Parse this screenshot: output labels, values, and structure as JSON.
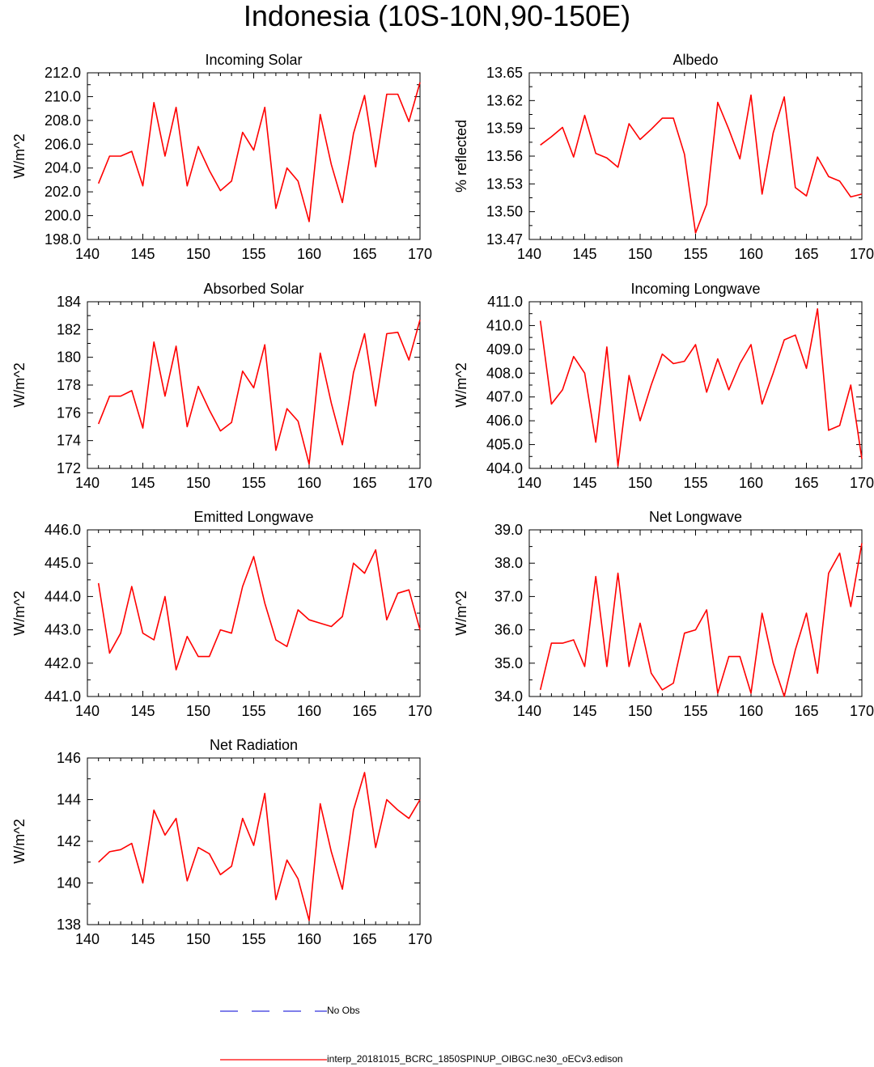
{
  "title": "Indonesia (10S-10N,90-150E)",
  "colors": {
    "model_line": "#ff0000",
    "obs_line": "#3333dd",
    "axis": "#000000"
  },
  "legend": [
    {
      "label": "No Obs",
      "style": "dashed",
      "color": "#3333dd"
    },
    {
      "label": "interp_20181015_BCRC_1850SPINUP_OIBGC.ne30_oECv3.edison",
      "style": "solid",
      "color": "#ff0000"
    }
  ],
  "chart_data": [
    {
      "type": "line",
      "title": "Incoming Solar",
      "ylabel": "W/m^2",
      "xlim": [
        140,
        170
      ],
      "xticks": [
        "140",
        "145",
        "150",
        "155",
        "160",
        "165",
        "170"
      ],
      "ylim": [
        198,
        212
      ],
      "yticks": [
        "198.0",
        "200.0",
        "202.0",
        "204.0",
        "206.0",
        "208.0",
        "210.0",
        "212.0"
      ],
      "x": [
        141,
        142,
        143,
        144,
        145,
        146,
        147,
        148,
        149,
        150,
        151,
        152,
        153,
        154,
        155,
        156,
        157,
        158,
        159,
        160,
        161,
        162,
        163,
        164,
        165,
        166,
        167,
        168,
        169,
        170
      ],
      "series": [
        {
          "name": "interp_20181015_BCRC_1850SPINUP_OIBGC.ne30_oECv3.edison",
          "values": [
            202.7,
            205.0,
            205.0,
            205.4,
            202.5,
            209.5,
            205.0,
            209.1,
            202.5,
            205.8,
            203.8,
            202.1,
            202.9,
            207.0,
            205.5,
            209.1,
            200.6,
            204.0,
            202.9,
            199.5,
            208.5,
            204.3,
            201.1,
            206.9,
            210.1,
            204.1,
            210.2,
            210.2,
            207.9,
            211.2
          ]
        }
      ]
    },
    {
      "type": "line",
      "title": "Albedo",
      "ylabel": "% reflected",
      "xlim": [
        140,
        170
      ],
      "xticks": [
        "140",
        "145",
        "150",
        "155",
        "160",
        "165",
        "170"
      ],
      "ylim": [
        13.47,
        13.65
      ],
      "yticks": [
        "13.47",
        "13.50",
        "13.53",
        "13.56",
        "13.59",
        "13.62",
        "13.65"
      ],
      "x": [
        141,
        142,
        143,
        144,
        145,
        146,
        147,
        148,
        149,
        150,
        151,
        152,
        153,
        154,
        155,
        156,
        157,
        158,
        159,
        160,
        161,
        162,
        163,
        164,
        165,
        166,
        167,
        168,
        169,
        170
      ],
      "series": [
        {
          "name": "interp_20181015_BCRC_1850SPINUP_OIBGC.ne30_oECv3.edison",
          "values": [
            13.572,
            13.581,
            13.591,
            13.559,
            13.604,
            13.563,
            13.558,
            13.548,
            13.595,
            13.578,
            13.589,
            13.601,
            13.601,
            13.562,
            13.477,
            13.508,
            13.618,
            13.589,
            13.557,
            13.626,
            13.519,
            13.585,
            13.624,
            13.526,
            13.517,
            13.559,
            13.538,
            13.533,
            13.516,
            13.519
          ]
        }
      ]
    },
    {
      "type": "line",
      "title": "Absorbed Solar",
      "ylabel": "W/m^2",
      "xlim": [
        140,
        170
      ],
      "xticks": [
        "140",
        "145",
        "150",
        "155",
        "160",
        "165",
        "170"
      ],
      "ylim": [
        172,
        184
      ],
      "yticks": [
        "172",
        "174",
        "176",
        "178",
        "180",
        "182",
        "184"
      ],
      "x": [
        141,
        142,
        143,
        144,
        145,
        146,
        147,
        148,
        149,
        150,
        151,
        152,
        153,
        154,
        155,
        156,
        157,
        158,
        159,
        160,
        161,
        162,
        163,
        164,
        165,
        166,
        167,
        168,
        169,
        170
      ],
      "series": [
        {
          "name": "interp_20181015_BCRC_1850SPINUP_OIBGC.ne30_oECv3.edison",
          "values": [
            175.2,
            177.2,
            177.2,
            177.6,
            174.9,
            181.1,
            177.2,
            180.8,
            175.0,
            177.9,
            176.2,
            174.7,
            175.3,
            179.0,
            177.8,
            180.9,
            173.3,
            176.3,
            175.4,
            172.3,
            180.3,
            176.7,
            173.7,
            178.9,
            181.7,
            176.5,
            181.7,
            181.8,
            179.8,
            182.7
          ]
        }
      ]
    },
    {
      "type": "line",
      "title": "Incoming Longwave",
      "ylabel": "W/m^2",
      "xlim": [
        140,
        170
      ],
      "xticks": [
        "140",
        "145",
        "150",
        "155",
        "160",
        "165",
        "170"
      ],
      "ylim": [
        404,
        411
      ],
      "yticks": [
        "404.0",
        "405.0",
        "406.0",
        "407.0",
        "408.0",
        "409.0",
        "410.0",
        "411.0"
      ],
      "x": [
        141,
        142,
        143,
        144,
        145,
        146,
        147,
        148,
        149,
        150,
        151,
        152,
        153,
        154,
        155,
        156,
        157,
        158,
        159,
        160,
        161,
        162,
        163,
        164,
        165,
        166,
        167,
        168,
        169,
        170
      ],
      "series": [
        {
          "name": "interp_20181015_BCRC_1850SPINUP_OIBGC.ne30_oECv3.edison",
          "values": [
            410.2,
            406.7,
            407.3,
            408.7,
            408.0,
            405.1,
            409.1,
            404.1,
            407.9,
            406.0,
            407.5,
            408.8,
            408.4,
            408.5,
            409.2,
            407.2,
            408.6,
            407.3,
            408.4,
            409.2,
            406.7,
            408.0,
            409.4,
            409.6,
            408.2,
            410.7,
            405.6,
            405.8,
            407.5,
            404.4
          ]
        }
      ]
    },
    {
      "type": "line",
      "title": "Emitted Longwave",
      "ylabel": "W/m^2",
      "xlim": [
        140,
        170
      ],
      "xticks": [
        "140",
        "145",
        "150",
        "155",
        "160",
        "165",
        "170"
      ],
      "ylim": [
        441,
        446
      ],
      "yticks": [
        "441.0",
        "442.0",
        "443.0",
        "444.0",
        "445.0",
        "446.0"
      ],
      "x": [
        141,
        142,
        143,
        144,
        145,
        146,
        147,
        148,
        149,
        150,
        151,
        152,
        153,
        154,
        155,
        156,
        157,
        158,
        159,
        160,
        161,
        162,
        163,
        164,
        165,
        166,
        167,
        168,
        169,
        170
      ],
      "series": [
        {
          "name": "interp_20181015_BCRC_1850SPINUP_OIBGC.ne30_oECv3.edison",
          "values": [
            444.4,
            442.3,
            442.9,
            444.3,
            442.9,
            442.7,
            444.0,
            441.8,
            442.8,
            442.2,
            442.2,
            443.0,
            442.9,
            444.3,
            445.2,
            443.8,
            442.7,
            442.5,
            443.6,
            443.3,
            443.2,
            443.1,
            443.4,
            445.0,
            444.7,
            445.4,
            443.3,
            444.1,
            444.2,
            443.0
          ]
        }
      ]
    },
    {
      "type": "line",
      "title": "Net Longwave",
      "ylabel": "W/m^2",
      "xlim": [
        140,
        170
      ],
      "xticks": [
        "140",
        "145",
        "150",
        "155",
        "160",
        "165",
        "170"
      ],
      "ylim": [
        34,
        39
      ],
      "yticks": [
        "34.0",
        "35.0",
        "36.0",
        "37.0",
        "38.0",
        "39.0"
      ],
      "x": [
        141,
        142,
        143,
        144,
        145,
        146,
        147,
        148,
        149,
        150,
        151,
        152,
        153,
        154,
        155,
        156,
        157,
        158,
        159,
        160,
        161,
        162,
        163,
        164,
        165,
        166,
        167,
        168,
        169,
        170
      ],
      "series": [
        {
          "name": "interp_20181015_BCRC_1850SPINUP_OIBGC.ne30_oECv3.edison",
          "values": [
            34.2,
            35.6,
            35.6,
            35.7,
            34.9,
            37.6,
            34.9,
            37.7,
            34.9,
            36.2,
            34.7,
            34.2,
            34.4,
            35.9,
            36.0,
            36.6,
            34.1,
            35.2,
            35.2,
            34.1,
            36.5,
            35.0,
            34.0,
            35.4,
            36.5,
            34.7,
            37.7,
            38.3,
            36.7,
            38.6
          ]
        }
      ]
    },
    {
      "type": "line",
      "title": "Net Radiation",
      "ylabel": "W/m^2",
      "xlim": [
        140,
        170
      ],
      "xticks": [
        "140",
        "145",
        "150",
        "155",
        "160",
        "165",
        "170"
      ],
      "ylim": [
        138,
        146
      ],
      "yticks": [
        "138",
        "140",
        "142",
        "144",
        "146"
      ],
      "x": [
        141,
        142,
        143,
        144,
        145,
        146,
        147,
        148,
        149,
        150,
        151,
        152,
        153,
        154,
        155,
        156,
        157,
        158,
        159,
        160,
        161,
        162,
        163,
        164,
        165,
        166,
        167,
        168,
        169,
        170
      ],
      "series": [
        {
          "name": "interp_20181015_BCRC_1850SPINUP_OIBGC.ne30_oECv3.edison",
          "values": [
            141.0,
            141.5,
            141.6,
            141.9,
            140.0,
            143.5,
            142.3,
            143.1,
            140.1,
            141.7,
            141.4,
            140.4,
            140.8,
            143.1,
            141.8,
            144.3,
            139.2,
            141.1,
            140.2,
            138.2,
            143.8,
            141.5,
            139.7,
            143.5,
            145.3,
            141.7,
            144.0,
            143.5,
            143.1,
            144.0
          ]
        }
      ]
    }
  ]
}
